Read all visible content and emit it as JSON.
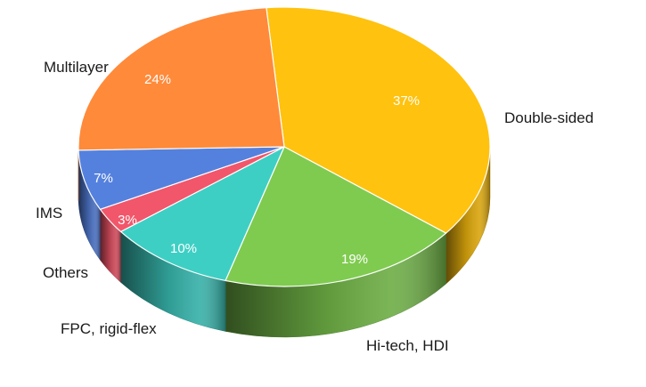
{
  "chart_data": {
    "type": "pie",
    "style": "3d",
    "categories": [
      "Double-sided",
      "Hi-tech, HDI",
      "FPC, rigid-flex",
      "Others",
      "IMS",
      "Multilayer"
    ],
    "values": [
      37,
      19,
      10,
      3,
      7,
      24
    ],
    "value_labels": [
      "37%",
      "19%",
      "10%",
      "3%",
      "7%",
      "24%"
    ],
    "colors": [
      "#FFC20E",
      "#7FCB50",
      "#3ECFC4",
      "#F2566A",
      "#5581DE",
      "#FF8A3A"
    ],
    "legend": "none",
    "title": ""
  }
}
